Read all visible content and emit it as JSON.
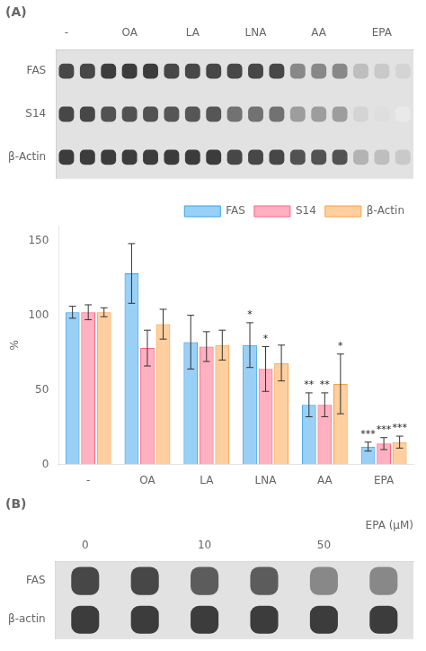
{
  "chart_data": [
    {
      "type": "heatmap",
      "title": "(A)",
      "categories": [
        "-",
        null,
        null,
        "OA",
        null,
        null,
        "LA",
        null,
        null,
        "LNA",
        null,
        null,
        "AA",
        null,
        null,
        "EPA",
        null
      ],
      "rows": [
        "FAS",
        "S14",
        "β-Actin"
      ],
      "cells": [
        [
          0.85,
          0.85,
          0.9,
          0.9,
          0.9,
          0.85,
          0.85,
          0.85,
          0.85,
          0.85,
          0.85,
          0.55,
          0.55,
          0.55,
          0.3,
          0.25,
          0.2
        ],
        [
          0.85,
          0.85,
          0.8,
          0.8,
          0.8,
          0.78,
          0.78,
          0.78,
          0.65,
          0.65,
          0.65,
          0.45,
          0.45,
          0.45,
          0.2,
          0.15,
          0.1
        ],
        [
          0.9,
          0.9,
          0.9,
          0.9,
          0.9,
          0.9,
          0.9,
          0.9,
          0.85,
          0.85,
          0.85,
          0.8,
          0.8,
          0.8,
          0.35,
          0.3,
          0.25
        ]
      ],
      "grid": false
    },
    {
      "type": "bar",
      "categories": [
        "-",
        "OA",
        "LA",
        "LNA",
        "AA",
        "EPA"
      ],
      "series": [
        {
          "name": "FAS",
          "values": [
            102,
            128,
            82,
            80,
            40,
            12
          ],
          "errors": [
            4,
            20,
            18,
            15,
            8,
            3
          ]
        },
        {
          "name": "S14",
          "values": [
            102,
            78,
            79,
            64,
            40,
            14
          ],
          "errors": [
            5,
            12,
            10,
            15,
            8,
            4
          ]
        },
        {
          "name": "β-Actin",
          "values": [
            102,
            94,
            80,
            68,
            54,
            15
          ],
          "errors": [
            3,
            10,
            10,
            12,
            20,
            4
          ]
        }
      ],
      "ylabel": "%",
      "ylim": [
        0,
        160
      ],
      "yticks": [
        0,
        50,
        100,
        150
      ],
      "grid": false,
      "legend": "upper right",
      "annotations": [
        {
          "category": "LNA",
          "series": "FAS",
          "text": "*"
        },
        {
          "category": "LNA",
          "series": "S14",
          "text": "*"
        },
        {
          "category": "AA",
          "series": "FAS",
          "text": "**"
        },
        {
          "category": "AA",
          "series": "S14",
          "text": "**"
        },
        {
          "category": "AA",
          "series": "β-Actin",
          "text": "*"
        },
        {
          "category": "EPA",
          "series": "FAS",
          "text": "***"
        },
        {
          "category": "EPA",
          "series": "S14",
          "text": "***"
        },
        {
          "category": "EPA",
          "series": "β-Actin",
          "text": "***"
        }
      ]
    },
    {
      "type": "heatmap",
      "title": "(B)",
      "xlabel": "EPA (μM)",
      "categories": [
        "0",
        null,
        "10",
        null,
        "50",
        null
      ],
      "rows": [
        "FAS",
        "β-actin"
      ],
      "cells": [
        [
          0.85,
          0.85,
          0.75,
          0.75,
          0.55,
          0.55
        ],
        [
          0.9,
          0.9,
          0.9,
          0.9,
          0.9,
          0.9
        ]
      ],
      "grid": false
    }
  ]
}
